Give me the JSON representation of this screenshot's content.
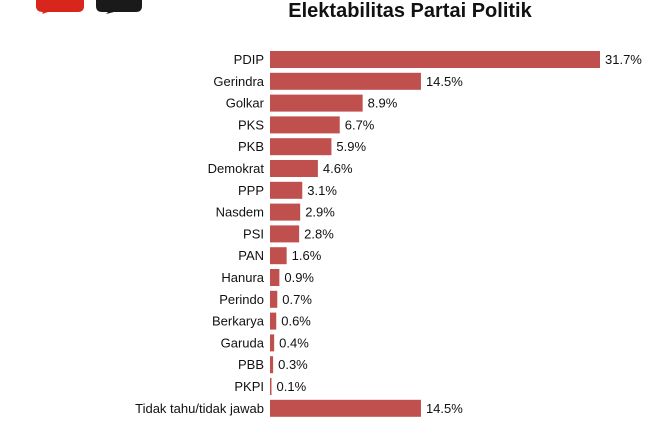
{
  "colors": {
    "bar": "#c0504d",
    "logo_red": "#d9261c",
    "logo_dark": "#1a1a1a"
  },
  "logo": {
    "icon": "speech-bubbles-logo"
  },
  "chart_data": {
    "type": "bar",
    "orientation": "horizontal",
    "title": "Elektabilitas Partai Politik",
    "categories": [
      "PDIP",
      "Gerindra",
      "Golkar",
      "PKS",
      "PKB",
      "Demokrat",
      "PPP",
      "Nasdem",
      "PSI",
      "PAN",
      "Hanura",
      "Perindo",
      "Berkarya",
      "Garuda",
      "PBB",
      "PKPI",
      "Tidak tahu/tidak jawab"
    ],
    "values": [
      31.7,
      14.5,
      8.9,
      6.7,
      5.9,
      4.6,
      3.1,
      2.9,
      2.8,
      1.6,
      0.9,
      0.7,
      0.6,
      0.4,
      0.3,
      0.1,
      14.5
    ],
    "value_labels": [
      "31.7%",
      "14.5%",
      "8.9%",
      "6.7%",
      "5.9%",
      "4.6%",
      "3.1%",
      "2.9%",
      "2.8%",
      "1.6%",
      "0.9%",
      "0.7%",
      "0.6%",
      "0.4%",
      "0.3%",
      "0.1%",
      "14.5%"
    ],
    "xlim": [
      0,
      31.7
    ],
    "grid": false,
    "legend": "none"
  }
}
